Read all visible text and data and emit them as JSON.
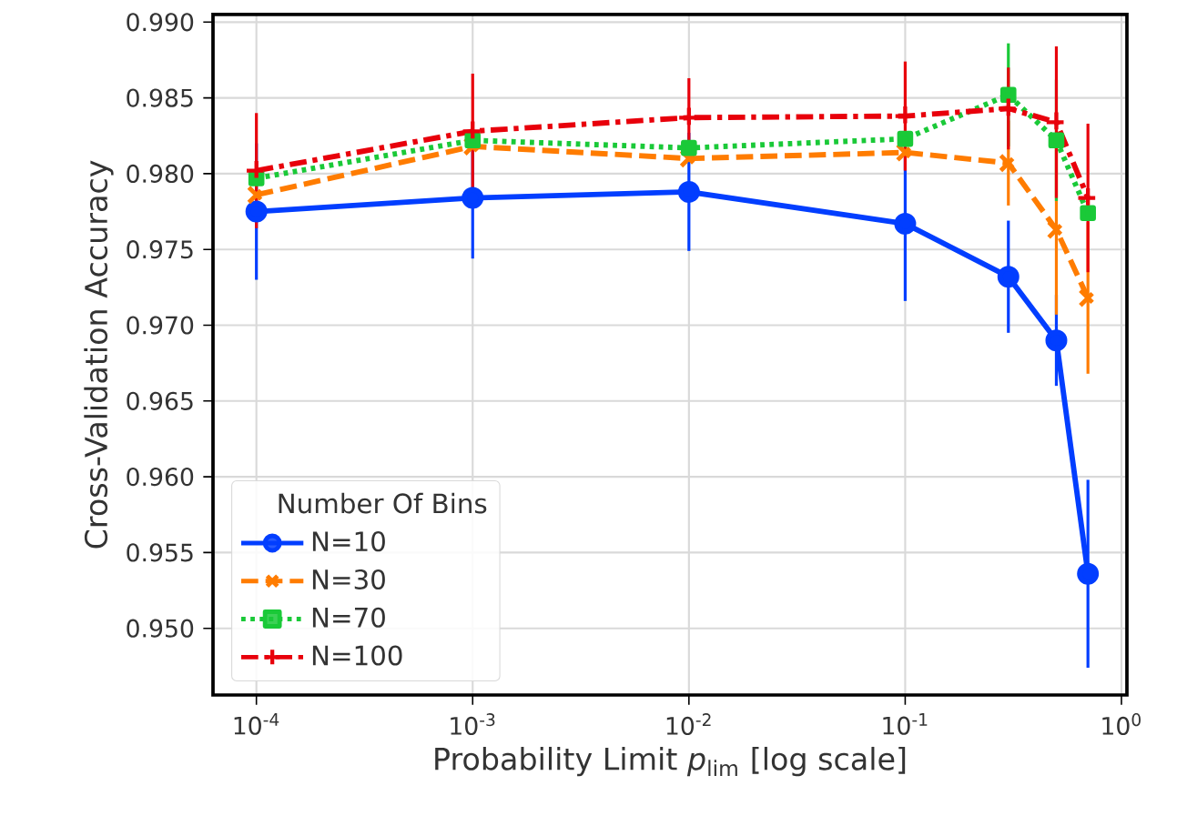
{
  "chart_data": {
    "type": "line",
    "xlabel": "Probability Limit *p*$_{lim}$ [log scale]",
    "ylabel": "Cross-Validation Accuracy",
    "legend_title": "Number Of Bins",
    "x": [
      0.0001,
      0.001,
      0.01,
      0.1,
      0.3,
      0.5,
      0.7
    ],
    "series": [
      {
        "name": "N=10",
        "color": "#023eff",
        "marker": "circle",
        "line_style": "solid",
        "values": [
          0.9775,
          0.9784,
          0.9788,
          0.9767,
          0.9732,
          0.969,
          0.9536
        ],
        "errors": [
          0.0045,
          0.004,
          0.0039,
          0.0051,
          0.0037,
          0.003,
          0.0062
        ]
      },
      {
        "name": "N=30",
        "color": "#ff7c00",
        "marker": "cross",
        "line_style": "dashed",
        "values": [
          0.9786,
          0.9818,
          0.981,
          0.9814,
          0.9807,
          0.9763,
          0.9718
        ],
        "errors": [
          null,
          null,
          null,
          null,
          0.0028,
          0.0056,
          0.005
        ]
      },
      {
        "name": "N=70",
        "color": "#1ac938",
        "marker": "square",
        "line_style": "dotted",
        "values": [
          0.9797,
          0.9822,
          0.9817,
          0.9823,
          0.9852,
          0.9822,
          0.9774
        ],
        "errors": [
          null,
          null,
          null,
          null,
          0.0034,
          0.004,
          null
        ]
      },
      {
        "name": "N=100",
        "color": "#e8000b",
        "marker": "plus",
        "line_style": "dashdot",
        "values": [
          0.9802,
          0.9828,
          0.9837,
          0.9838,
          0.9843,
          0.9834,
          0.9784
        ],
        "errors": [
          0.0038,
          0.0038,
          0.0026,
          0.0036,
          0.0027,
          0.005,
          0.0049
        ]
      }
    ],
    "log": "x",
    "xlim": [
      6.3e-05,
      1.06
    ],
    "ylim": [
      0.9456,
      0.9905
    ],
    "xticks": [
      {
        "value": 0.0001,
        "label": "10$^{-4}$"
      },
      {
        "value": 0.001,
        "label": "10$^{-3}$"
      },
      {
        "value": 0.01,
        "label": "10$^{-2}$"
      },
      {
        "value": 0.1,
        "label": "10$^{-1}$"
      },
      {
        "value": 1,
        "label": "10$^{0}$"
      }
    ],
    "yticks": [
      {
        "value": 0.95,
        "label": "0.950"
      },
      {
        "value": 0.955,
        "label": "0.955"
      },
      {
        "value": 0.96,
        "label": "0.960"
      },
      {
        "value": 0.965,
        "label": "0.965"
      },
      {
        "value": 0.97,
        "label": "0.970"
      },
      {
        "value": 0.975,
        "label": "0.975"
      },
      {
        "value": 0.98,
        "label": "0.980"
      },
      {
        "value": 0.985,
        "label": "0.985"
      },
      {
        "value": 0.99,
        "label": "0.990"
      }
    ],
    "grid": true,
    "legend": "bottom left"
  }
}
